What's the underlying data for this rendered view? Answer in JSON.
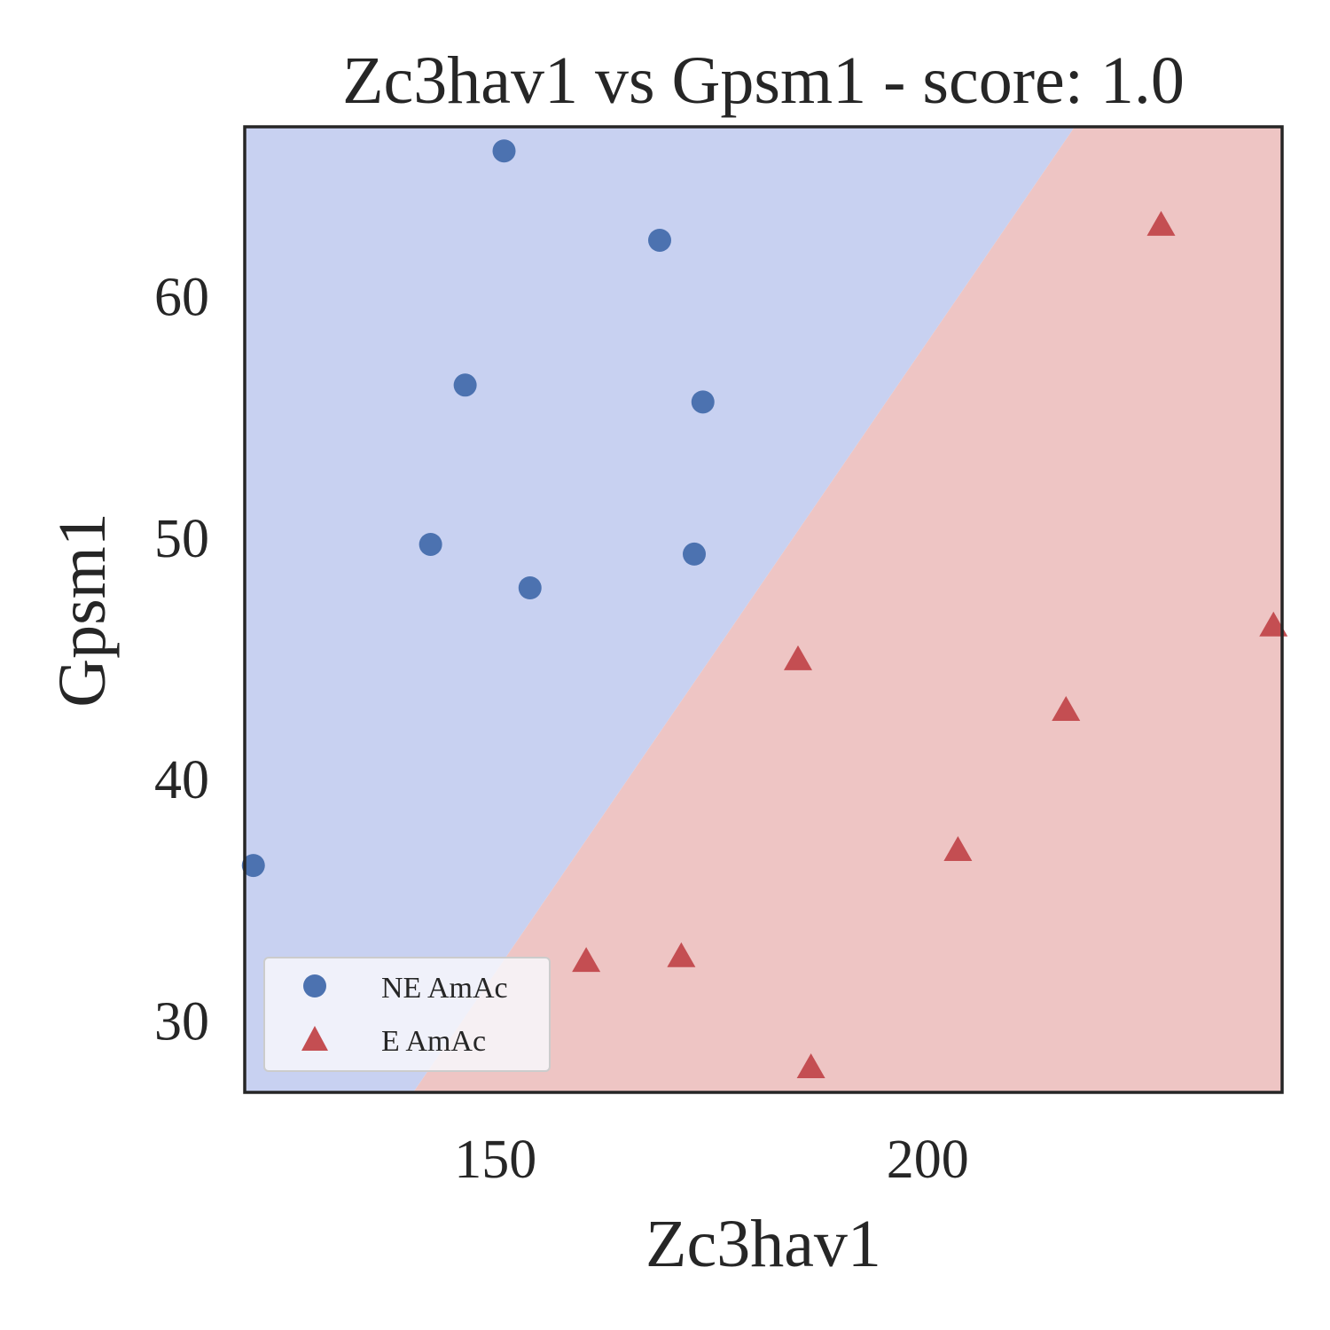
{
  "chart_data": {
    "type": "scatter",
    "title": "Zc3hav1 vs Gpsm1 - score: 1.0",
    "xlabel": "Zc3hav1",
    "ylabel": "Gpsm1",
    "xlim": [
      121,
      241
    ],
    "ylim": [
      27,
      67
    ],
    "xticks": [
      150,
      200
    ],
    "yticks": [
      30,
      40,
      50,
      60
    ],
    "grid": false,
    "legend_position": "lower-left",
    "decision_boundary": {
      "line": [
        [
          140.5,
          27
        ],
        [
          217.0,
          67
        ]
      ],
      "left_region_color": "#c8d1f1",
      "right_region_color": "#eec5c4"
    },
    "series": [
      {
        "name": "NE AmAc",
        "marker": "circle",
        "color": "#4c72b0",
        "points": [
          [
            151,
            66.0
          ],
          [
            169,
            62.3
          ],
          [
            146.5,
            56.3
          ],
          [
            174,
            55.6
          ],
          [
            142.5,
            49.7
          ],
          [
            173,
            49.3
          ],
          [
            154,
            47.9
          ],
          [
            122,
            36.4
          ]
        ]
      },
      {
        "name": "E AmAc",
        "marker": "triangle",
        "color": "#c44e52",
        "points": [
          [
            227,
            62.9
          ],
          [
            240,
            46.3
          ],
          [
            185,
            44.9
          ],
          [
            216,
            42.8
          ],
          [
            203.5,
            37.0
          ],
          [
            160.5,
            32.4
          ],
          [
            171.5,
            32.6
          ],
          [
            186.5,
            28.0
          ]
        ]
      }
    ]
  }
}
